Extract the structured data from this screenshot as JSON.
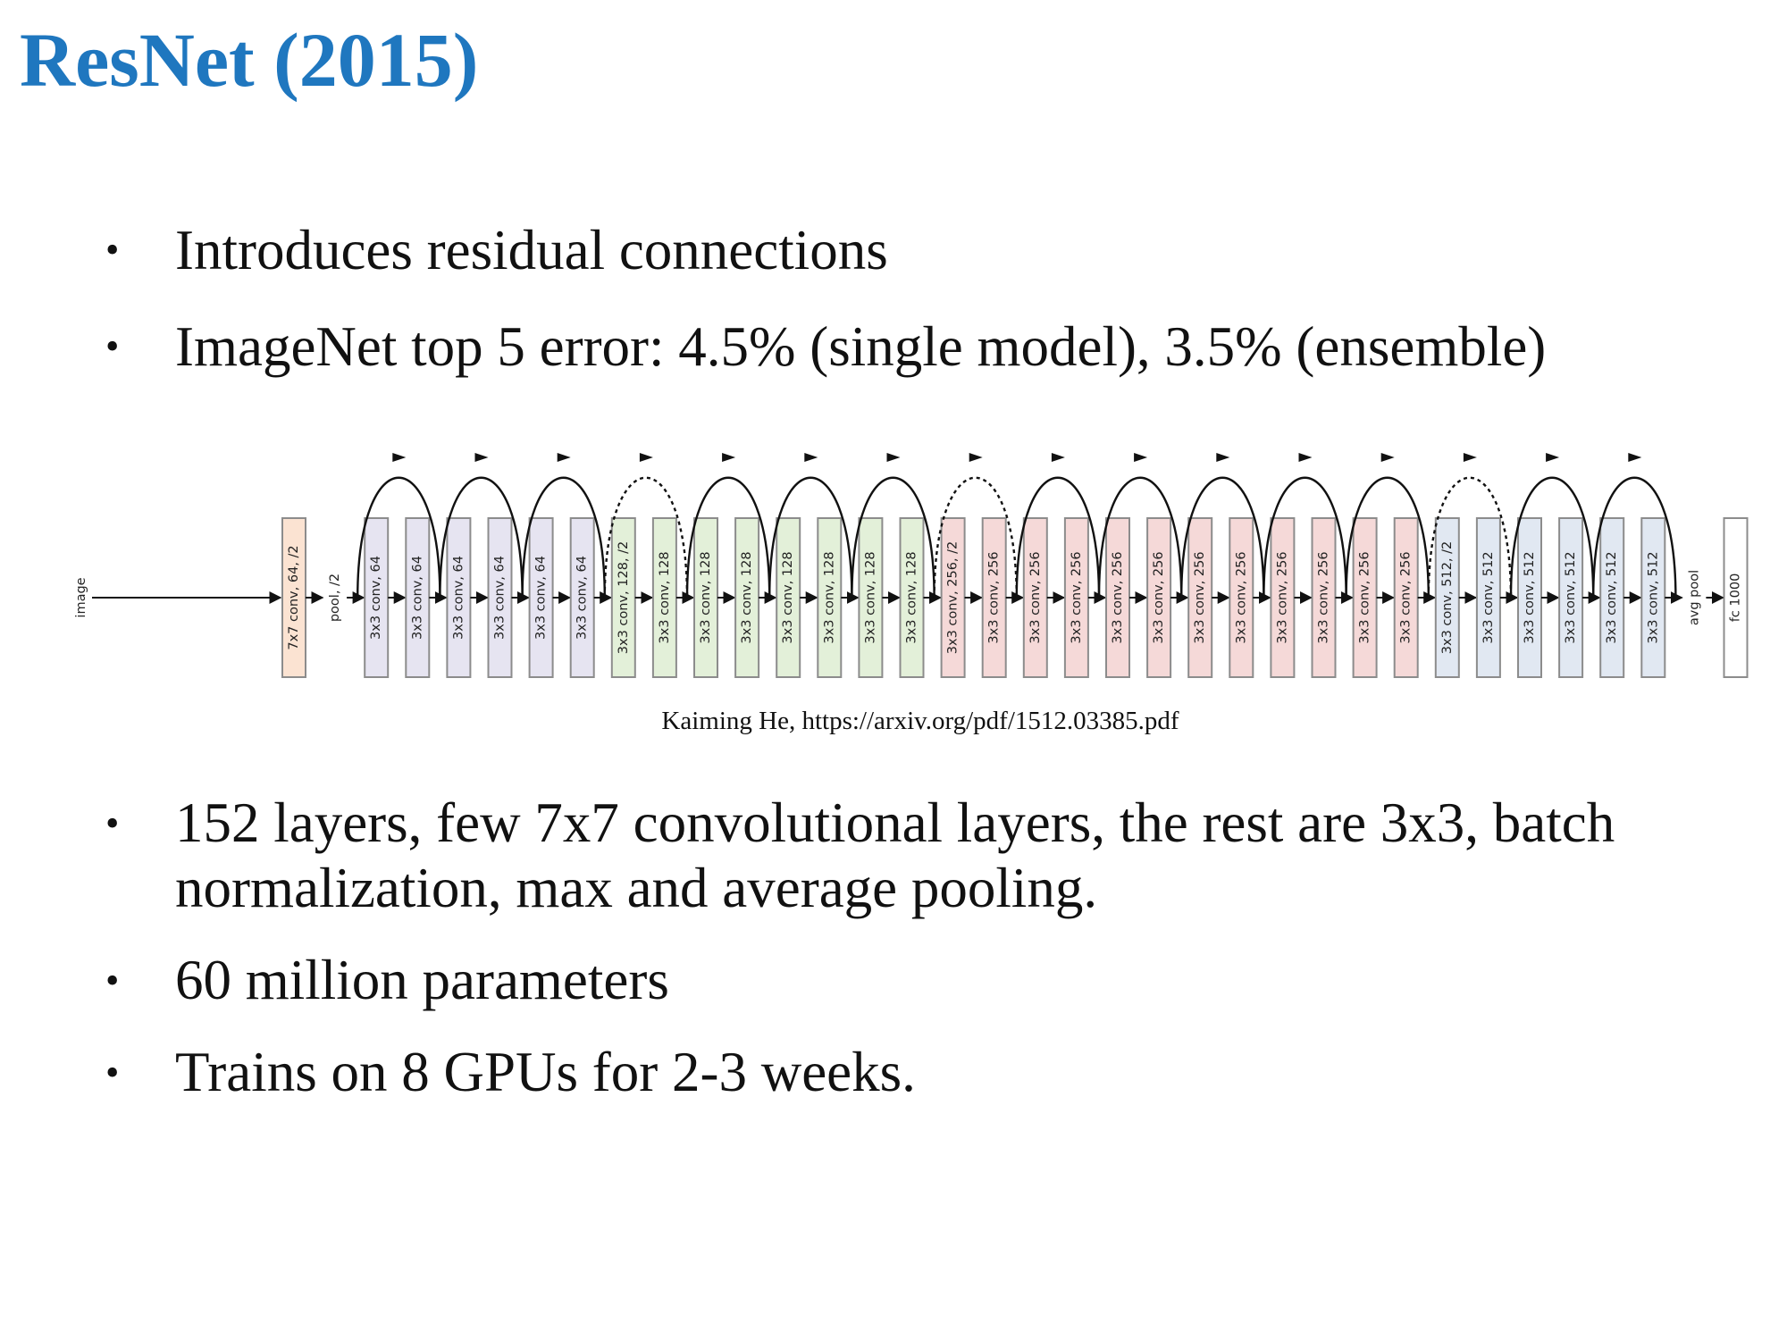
{
  "title": "ResNet (2015)",
  "bullets_top": [
    "Introduces residual connections",
    "ImageNet top 5 error: 4.5% (single model), 3.5% (ensemble)"
  ],
  "diagram": {
    "input_label": "image",
    "colors": {
      "conv7": "#fbe3d2",
      "conv64": "#e6e4f1",
      "conv128": "#e3f0d9",
      "conv256": "#f5d9d8",
      "conv512": "#e1e8f2",
      "box_border": "#8c8c8c",
      "arrow": "#111111"
    },
    "layers": [
      {
        "label": "7x7 conv, 64, /2",
        "group": "conv7"
      },
      {
        "label": "pool, /2",
        "group": "pool"
      },
      {
        "label": "3x3 conv, 64",
        "group": "conv64"
      },
      {
        "label": "3x3 conv, 64",
        "group": "conv64"
      },
      {
        "label": "3x3 conv, 64",
        "group": "conv64"
      },
      {
        "label": "3x3 conv, 64",
        "group": "conv64"
      },
      {
        "label": "3x3 conv, 64",
        "group": "conv64"
      },
      {
        "label": "3x3 conv, 64",
        "group": "conv64"
      },
      {
        "label": "3x3 conv, 128, /2",
        "group": "conv128"
      },
      {
        "label": "3x3 conv, 128",
        "group": "conv128"
      },
      {
        "label": "3x3 conv, 128",
        "group": "conv128"
      },
      {
        "label": "3x3 conv, 128",
        "group": "conv128"
      },
      {
        "label": "3x3 conv, 128",
        "group": "conv128"
      },
      {
        "label": "3x3 conv, 128",
        "group": "conv128"
      },
      {
        "label": "3x3 conv, 128",
        "group": "conv128"
      },
      {
        "label": "3x3 conv, 128",
        "group": "conv128"
      },
      {
        "label": "3x3 conv, 256, /2",
        "group": "conv256"
      },
      {
        "label": "3x3 conv, 256",
        "group": "conv256"
      },
      {
        "label": "3x3 conv, 256",
        "group": "conv256"
      },
      {
        "label": "3x3 conv, 256",
        "group": "conv256"
      },
      {
        "label": "3x3 conv, 256",
        "group": "conv256"
      },
      {
        "label": "3x3 conv, 256",
        "group": "conv256"
      },
      {
        "label": "3x3 conv, 256",
        "group": "conv256"
      },
      {
        "label": "3x3 conv, 256",
        "group": "conv256"
      },
      {
        "label": "3x3 conv, 256",
        "group": "conv256"
      },
      {
        "label": "3x3 conv, 256",
        "group": "conv256"
      },
      {
        "label": "3x3 conv, 256",
        "group": "conv256"
      },
      {
        "label": "3x3 conv, 256",
        "group": "conv256"
      },
      {
        "label": "3x3 conv, 512, /2",
        "group": "conv512"
      },
      {
        "label": "3x3 conv, 512",
        "group": "conv512"
      },
      {
        "label": "3x3 conv, 512",
        "group": "conv512"
      },
      {
        "label": "3x3 conv, 512",
        "group": "conv512"
      },
      {
        "label": "3x3 conv, 512",
        "group": "conv512"
      },
      {
        "label": "3x3 conv, 512",
        "group": "conv512"
      },
      {
        "label": "avg pool",
        "group": "pool"
      },
      {
        "label": "fc 1000",
        "group": "fc"
      }
    ],
    "skip_connections": [
      {
        "from": 2,
        "to": 4,
        "dashed": false
      },
      {
        "from": 4,
        "to": 6,
        "dashed": false
      },
      {
        "from": 6,
        "to": 8,
        "dashed": false
      },
      {
        "from": 8,
        "to": 10,
        "dashed": true
      },
      {
        "from": 10,
        "to": 12,
        "dashed": false
      },
      {
        "from": 12,
        "to": 14,
        "dashed": false
      },
      {
        "from": 14,
        "to": 16,
        "dashed": false
      },
      {
        "from": 16,
        "to": 18,
        "dashed": true
      },
      {
        "from": 18,
        "to": 20,
        "dashed": false
      },
      {
        "from": 20,
        "to": 22,
        "dashed": false
      },
      {
        "from": 22,
        "to": 24,
        "dashed": false
      },
      {
        "from": 24,
        "to": 26,
        "dashed": false
      },
      {
        "from": 26,
        "to": 28,
        "dashed": false
      },
      {
        "from": 28,
        "to": 30,
        "dashed": true
      },
      {
        "from": 30,
        "to": 32,
        "dashed": false
      },
      {
        "from": 32,
        "to": 34,
        "dashed": false
      }
    ]
  },
  "caption": "Kaiming He, https://arxiv.org/pdf/1512.03385.pdf",
  "bullets_bottom": [
    "152 layers, few 7x7 convolutional layers, the rest are 3x3, batch normalization, max and average pooling.",
    "60 million parameters",
    "Trains on 8 GPUs for 2-3 weeks."
  ]
}
